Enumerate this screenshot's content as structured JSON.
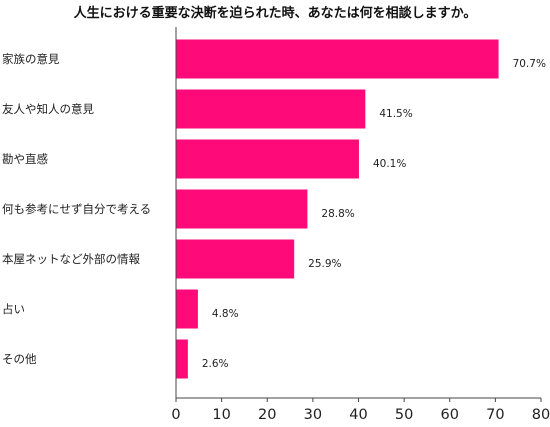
{
  "chart_data": {
    "type": "bar",
    "orientation": "horizontal",
    "title": "人生における重要な決断を迫られた時、あなたは何を相談しますか。",
    "categories": [
      "家族の意見",
      "友人や知人の意見",
      "勘や直感",
      "何も参考にせず自分で考える",
      "本屋ネットなど外部の情報",
      "占い",
      "その他"
    ],
    "values": [
      70.7,
      41.5,
      40.1,
      28.8,
      25.9,
      4.8,
      2.6
    ],
    "value_labels": [
      "70.7%",
      "41.5%",
      "40.1%",
      "28.8%",
      "25.9%",
      "4.8%",
      "2.6%"
    ],
    "xlabel": "",
    "ylabel": "",
    "xlim": [
      0,
      80
    ],
    "xticks": [
      "0",
      "10",
      "20",
      "30",
      "40",
      "50",
      "60",
      "70",
      "80"
    ],
    "grid": false,
    "bar_color": "#ff0a78"
  }
}
